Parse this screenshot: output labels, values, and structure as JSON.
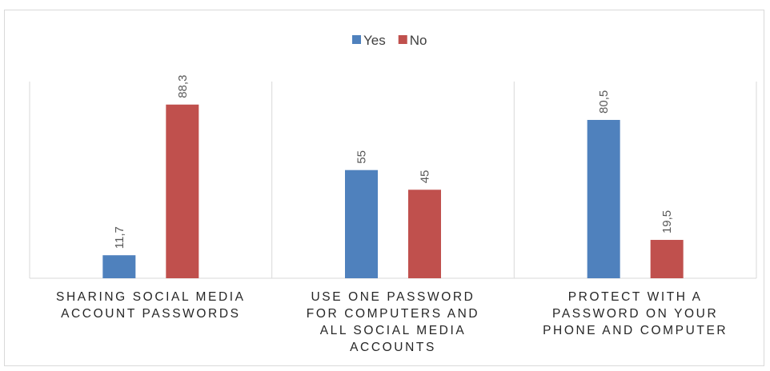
{
  "chart_data": {
    "type": "bar",
    "categories": [
      [
        "SHARING SOCIAL MEDIA",
        "ACCOUNT PASSWORDS"
      ],
      [
        "USE ONE PASSWORD",
        "FOR COMPUTERS AND",
        "ALL SOCIAL MEDIA",
        "ACCOUNTS"
      ],
      [
        "PROTECT WITH A",
        "PASSWORD ON YOUR",
        "PHONE AND COMPUTER"
      ]
    ],
    "series": [
      {
        "name": "Yes",
        "color": "#4f81bd",
        "values": [
          11.7,
          55,
          80.5
        ],
        "labels": [
          "11,7",
          "55",
          "80,5"
        ]
      },
      {
        "name": "No",
        "color": "#c0504d",
        "values": [
          88.3,
          45,
          19.5
        ],
        "labels": [
          "88,3",
          "45",
          "19,5"
        ]
      }
    ],
    "ylim": [
      0,
      100
    ],
    "grid": false,
    "legend_position": "top-center",
    "data_labels_rotated": true
  }
}
